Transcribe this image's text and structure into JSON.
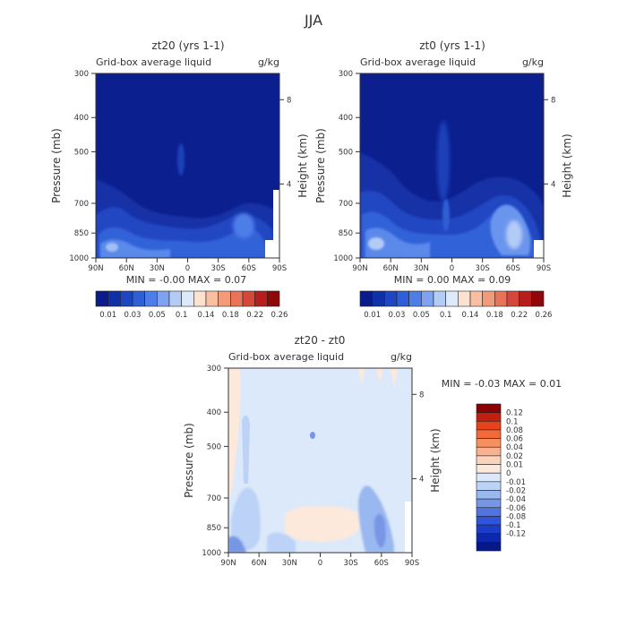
{
  "chart_data": [
    {
      "type": "heatmap",
      "id": "zt20",
      "title": "zt20 (yrs 1-1)",
      "subtitle": "Grid-box average liquid",
      "units": "g/kg",
      "ylabel": "Pressure (mb)",
      "y2label": "Height (km)",
      "xticks": [
        "90N",
        "60N",
        "30N",
        "0",
        "30S",
        "60S",
        "90S"
      ],
      "yticks": [
        300,
        400,
        500,
        700,
        850,
        1000
      ],
      "y2ticks": [
        "8",
        "4"
      ],
      "xlim": [
        90,
        -90
      ],
      "ylim": [
        1000,
        300
      ],
      "stats": "MIN =  -0.00   MAX =   0.07",
      "colorbar": {
        "orientation": "horizontal",
        "colors": [
          "#0a1c8c",
          "#1030a8",
          "#1e46c0",
          "#2f5fd6",
          "#4d7ee8",
          "#7ea2f0",
          "#b2ccf6",
          "#dce9fa",
          "#fde1cf",
          "#f9bfa0",
          "#f39a78",
          "#e87356",
          "#d6473b",
          "#b81d1d",
          "#8f0707"
        ],
        "labels": [
          "0.01",
          "0.03",
          "0.05",
          "0.1",
          "0.14",
          "0.18",
          "0.22",
          "0.26"
        ]
      }
    },
    {
      "type": "heatmap",
      "id": "zt0",
      "title": "zt0 (yrs 1-1)",
      "subtitle": "Grid-box average liquid",
      "units": "g/kg",
      "ylabel": "Pressure (mb)",
      "y2label": "Height (km)",
      "xticks": [
        "90N",
        "60N",
        "30N",
        "0",
        "30S",
        "60S",
        "90S"
      ],
      "yticks": [
        300,
        400,
        500,
        700,
        850,
        1000
      ],
      "y2ticks": [
        "8",
        "4"
      ],
      "xlim": [
        90,
        -90
      ],
      "ylim": [
        1000,
        300
      ],
      "stats": "MIN =   0.00   MAX =   0.09",
      "colorbar": {
        "orientation": "horizontal",
        "colors": [
          "#0a1c8c",
          "#1030a8",
          "#1e46c0",
          "#2f5fd6",
          "#4d7ee8",
          "#7ea2f0",
          "#b2ccf6",
          "#dce9fa",
          "#fde1cf",
          "#f9bfa0",
          "#f39a78",
          "#e87356",
          "#d6473b",
          "#b81d1d",
          "#8f0707"
        ],
        "labels": [
          "0.01",
          "0.03",
          "0.05",
          "0.1",
          "0.14",
          "0.18",
          "0.22",
          "0.26"
        ]
      }
    },
    {
      "type": "heatmap",
      "id": "diff",
      "title": "zt20 - zt0",
      "subtitle": "Grid-box average liquid",
      "units": "g/kg",
      "ylabel": "Pressure (mb)",
      "y2label": "Height (km)",
      "xticks": [
        "90N",
        "60N",
        "30N",
        "0",
        "30S",
        "60S",
        "90S"
      ],
      "yticks": [
        300,
        400,
        500,
        700,
        850,
        1000
      ],
      "y2ticks": [
        "8",
        "4"
      ],
      "xlim": [
        90,
        -90
      ],
      "ylim": [
        1000,
        300
      ],
      "stats": "MIN =  -0.03   MAX =   0.01",
      "colorbar": {
        "orientation": "vertical",
        "colors": [
          "#8b0000",
          "#c0200e",
          "#e8421a",
          "#f26a3a",
          "#f7905f",
          "#f9b290",
          "#fbd3bc",
          "#fde9db",
          "#dce9fa",
          "#bcd2f6",
          "#9ab8f0",
          "#7797e6",
          "#5274de",
          "#2f55da",
          "#1c3dc8",
          "#0d28ac",
          "#041888"
        ],
        "labels": [
          "0.12",
          "0.1",
          "0.08",
          "0.06",
          "0.04",
          "0.02",
          "0.01",
          "0",
          "-0.01",
          "-0.02",
          "-0.04",
          "-0.06",
          "-0.08",
          "-0.1",
          "-0.12"
        ]
      }
    }
  ],
  "page": {
    "season": "JJA"
  }
}
